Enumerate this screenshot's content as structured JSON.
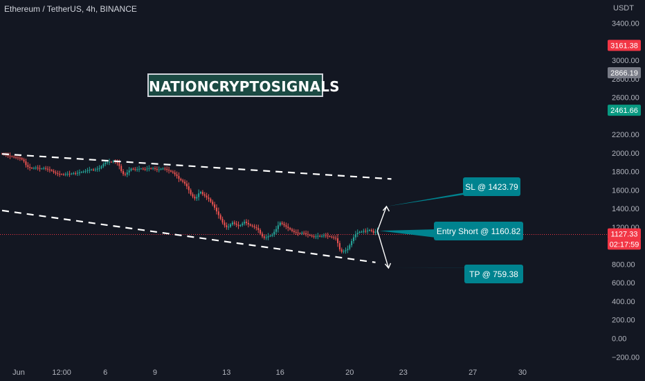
{
  "header": {
    "title": "Ethereum / TetherUS, 4h, BINANCE"
  },
  "watermark": "NATIONCRYPTOSIGNALS",
  "colors": {
    "background": "#131722",
    "bull": "#26a69a",
    "bear": "#ef5350",
    "callout": "#00838f",
    "trendline": "#ffffff"
  },
  "chart_data": {
    "type": "candlestick",
    "price_axis": {
      "unit_label": "USDT",
      "ticks": [
        3400,
        3000,
        2800,
        2600,
        2200,
        2000,
        1800,
        1600,
        1400,
        1200,
        800,
        600,
        400,
        200,
        0,
        -200
      ],
      "tick_labels": [
        "3400.00",
        "3000.00",
        "2800.00",
        "2600.00",
        "2200.00",
        "2000.00",
        "1800.00",
        "1600.00",
        "1400.00",
        "1200.00",
        "800.00",
        "600.00",
        "400.00",
        "200.00",
        "0.00",
        "−200.00"
      ],
      "ylim": [
        -250,
        3600
      ]
    },
    "time_axis": {
      "labels": [
        "Jun",
        "12:00",
        "6",
        "9",
        "13",
        "16",
        "20",
        "23",
        "27",
        "30"
      ],
      "positions_bar_index": [
        0,
        30,
        52,
        77,
        113,
        140,
        175,
        202,
        237,
        262
      ]
    },
    "price_tags": [
      {
        "value": "3161.38",
        "price": 3161.38,
        "color": "#f23645"
      },
      {
        "value": "2866.19",
        "price": 2866.19,
        "color": "#787b86"
      },
      {
        "value": "2461.66",
        "price": 2461.66,
        "color": "#089981"
      },
      {
        "value": "1127.33",
        "price": 1127.33,
        "color": "#f23645"
      },
      {
        "value": "02:17:59",
        "price": 1017,
        "color": "#f23645"
      }
    ],
    "last_price": 1127.33,
    "trendlines": [
      {
        "from": {
          "bar": 0,
          "price": 1990
        },
        "to": {
          "bar": 196,
          "price": 1720
        }
      },
      {
        "from": {
          "bar": 0,
          "price": 1380
        },
        "to": {
          "bar": 188,
          "price": 820
        }
      }
    ],
    "annotations": [
      {
        "label": "SL @ 1423.79",
        "price": 1423.79,
        "bar": 209
      },
      {
        "label": "Entry Short @ 1160.82",
        "price": 1160.82,
        "bar": 209
      },
      {
        "label": "TP @ 759.38",
        "price": 759.38,
        "bar": 209
      }
    ],
    "series": [
      {
        "name": "ETHUSDT",
        "close": [
          1990,
          1985,
          1978,
          1972,
          1965,
          1960,
          1955,
          1952,
          1948,
          1945,
          1930,
          1910,
          1870,
          1850,
          1840,
          1835,
          1838,
          1842,
          1836,
          1830,
          1832,
          1838,
          1830,
          1822,
          1818,
          1808,
          1792,
          1782,
          1775,
          1772,
          1770,
          1768,
          1772,
          1776,
          1772,
          1778,
          1782,
          1778,
          1786,
          1790,
          1796,
          1800,
          1806,
          1812,
          1818,
          1822,
          1818,
          1822,
          1830,
          1836,
          1856,
          1880,
          1898,
          1900,
          1905,
          1904,
          1910,
          1902,
          1890,
          1860,
          1805,
          1772,
          1768,
          1790,
          1812,
          1830,
          1828,
          1822,
          1825,
          1830,
          1832,
          1828,
          1825,
          1832,
          1836,
          1830,
          1836,
          1828,
          1820,
          1822,
          1830,
          1832,
          1828,
          1818,
          1810,
          1800,
          1790,
          1770,
          1752,
          1722,
          1705,
          1690,
          1670,
          1640,
          1600,
          1556,
          1530,
          1510,
          1525,
          1565,
          1580,
          1555,
          1540,
          1520,
          1505,
          1475,
          1445,
          1410,
          1370,
          1330,
          1290,
          1250,
          1220,
          1200,
          1205,
          1230,
          1250,
          1238,
          1226,
          1212,
          1222,
          1240,
          1258,
          1245,
          1230,
          1218,
          1210,
          1200,
          1190,
          1170,
          1130,
          1100,
          1085,
          1090,
          1102,
          1108,
          1120,
          1150,
          1180,
          1220,
          1248,
          1235,
          1220,
          1205,
          1190,
          1175,
          1160,
          1148,
          1142,
          1135,
          1130,
          1140,
          1135,
          1125,
          1118,
          1110,
          1102,
          1096,
          1100,
          1106,
          1100,
          1105,
          1112,
          1108,
          1103,
          1098,
          1092,
          1085,
          1080,
          1028,
          960,
          935,
          940,
          952,
          966,
          1005,
          1050,
          1090,
          1125,
          1140,
          1150,
          1150,
          1160,
          1157,
          1162,
          1170,
          1160,
          1140,
          1151,
          1160.82
        ]
      }
    ]
  }
}
